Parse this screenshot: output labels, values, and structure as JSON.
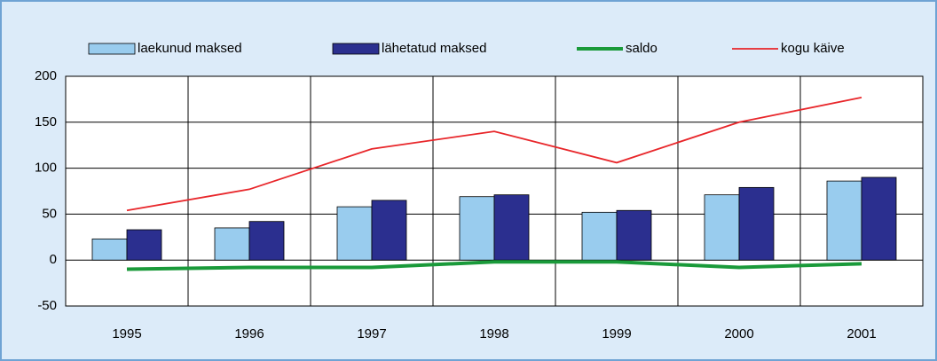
{
  "chart_data": {
    "type": "bar-line",
    "categories": [
      "1995",
      "1996",
      "1997",
      "1998",
      "1999",
      "2000",
      "2001"
    ],
    "series": [
      {
        "name": "laekunud maksed",
        "kind": "bar",
        "color": "#99ccee",
        "values": [
          23,
          35,
          58,
          69,
          52,
          71,
          86
        ]
      },
      {
        "name": "lähetatud maksed",
        "kind": "bar",
        "color": "#2b2f8f",
        "values": [
          33,
          42,
          65,
          71,
          54,
          79,
          90
        ]
      },
      {
        "name": "saldo",
        "kind": "line",
        "color": "#1a9a3a",
        "values": [
          -10,
          -8,
          -8,
          -2,
          -2,
          -8,
          -4
        ]
      },
      {
        "name": "kogu käive",
        "kind": "line",
        "color": "#e8262a",
        "values": [
          54,
          77,
          121,
          140,
          106,
          150,
          177
        ]
      }
    ],
    "ylim": [
      -50,
      200
    ],
    "yticks": [
      -50,
      0,
      50,
      100,
      150,
      200
    ],
    "grid": true
  }
}
